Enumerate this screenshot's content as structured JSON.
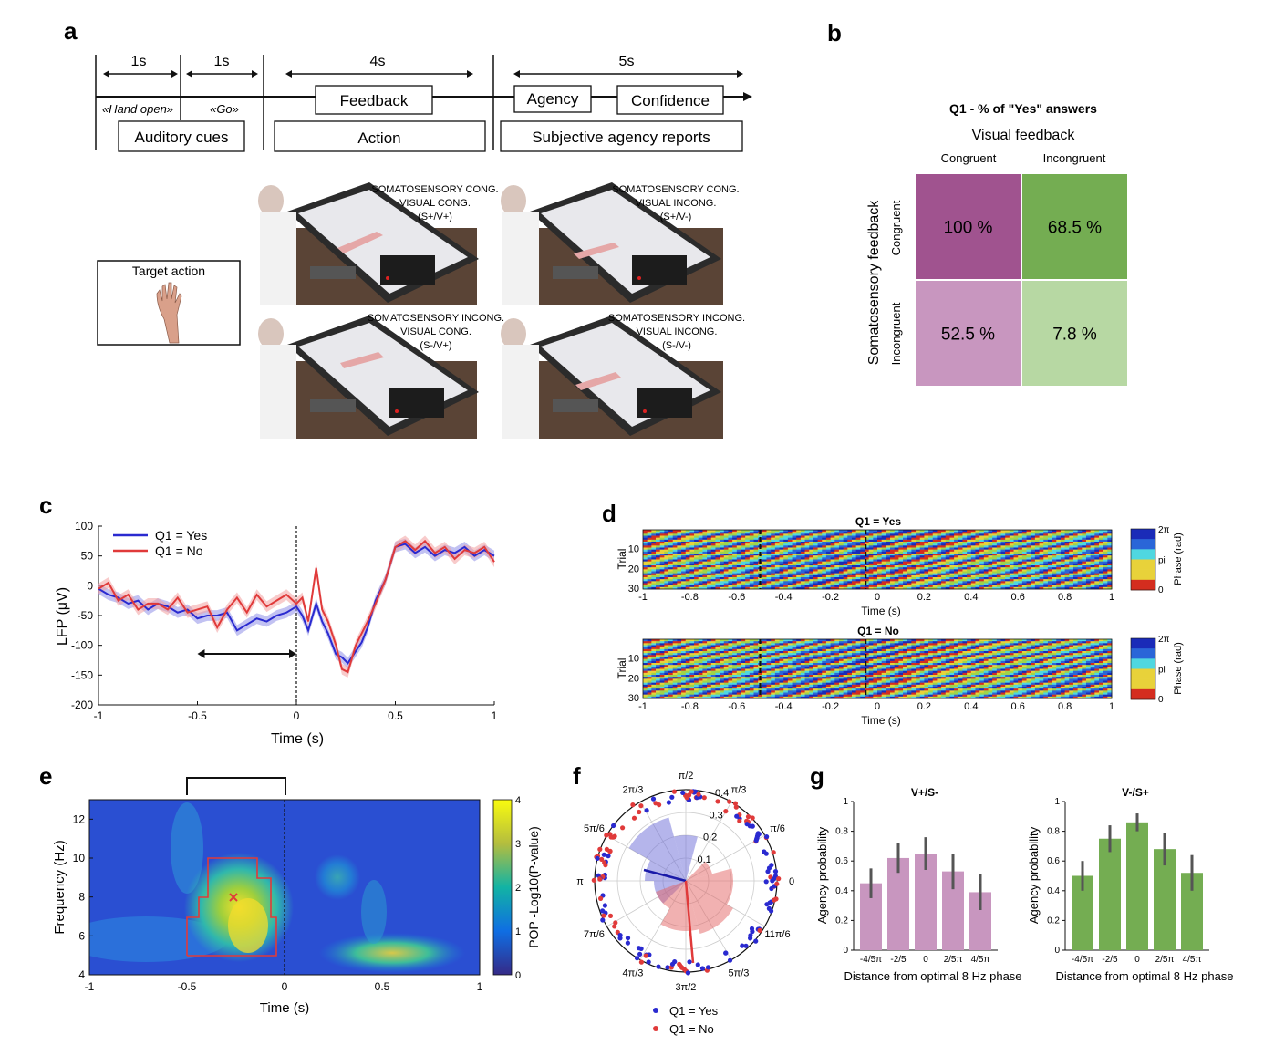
{
  "panels": {
    "a": "a",
    "b": "b",
    "c": "c",
    "d": "d",
    "e": "e",
    "f": "f",
    "g": "g"
  },
  "a": {
    "durations": [
      "1s",
      "1s",
      "4s",
      "5s"
    ],
    "cue_hand_open": "«Hand open»",
    "cue_go": "«Go»",
    "boxes": {
      "auditory": "Auditory cues",
      "feedback": "Feedback",
      "action": "Action",
      "agency": "Agency",
      "confidence": "Confidence",
      "reports": "Subjective agency reports"
    },
    "target_action": "Target action",
    "conditions": [
      [
        "SOMATOSENSORY CONG.",
        "VISUAL CONG.",
        "(S+/V+)"
      ],
      [
        "SOMATOSENSORY CONG.",
        "VISUAL INCONG.",
        "(S+/V-)"
      ],
      [
        "SOMATOSENSORY INCONG.",
        "VISUAL CONG.",
        "(S-/V+)"
      ],
      [
        "SOMATOSENSORY INCONG.",
        "VISUAL INCONG.",
        "(S-/V-)"
      ]
    ]
  },
  "chart_data": [
    {
      "panel": "b",
      "type": "heatmap",
      "title": "Q1 - % of \"Yes\" answers",
      "xlabel": "Visual feedback",
      "ylabel": "Somatosensory feedback",
      "columns": [
        "Congruent",
        "Incongruent"
      ],
      "rows": [
        "Congruent",
        "Incongruent"
      ],
      "values": [
        [
          100,
          68.5
        ],
        [
          52.5,
          7.8
        ]
      ],
      "value_labels": [
        [
          "100 %",
          "68.5 %"
        ],
        [
          "52.5 %",
          "7.8 %"
        ]
      ],
      "colors": [
        [
          "#a0538f",
          "#74ad52"
        ],
        [
          "#c896bf",
          "#b7d8a3"
        ]
      ]
    },
    {
      "panel": "c",
      "type": "line",
      "xlabel": "Time (s)",
      "ylabel": "LFP (μV)",
      "xlim": [
        -1,
        1
      ],
      "ylim": [
        -200,
        100
      ],
      "xticks": [
        -1,
        -0.5,
        0,
        0.5,
        1
      ],
      "xtick_labels": [
        "-1",
        "-0.5",
        "0",
        "0.5",
        "1"
      ],
      "yticks": [
        100,
        50,
        0,
        -50,
        -100,
        -150,
        -200
      ],
      "ytick_labels": [
        "100",
        "50",
        "0",
        "-50",
        "-100",
        "-150",
        "-200"
      ],
      "vline": 0,
      "arrow_x": [
        -0.5,
        0
      ],
      "series": [
        {
          "name": "Q1 = Yes",
          "color": "#2a2ad0",
          "band": "#8f8fe8",
          "x": [
            -1,
            -0.95,
            -0.9,
            -0.85,
            -0.8,
            -0.75,
            -0.7,
            -0.65,
            -0.6,
            -0.55,
            -0.5,
            -0.45,
            -0.4,
            -0.35,
            -0.3,
            -0.25,
            -0.2,
            -0.15,
            -0.1,
            -0.05,
            0,
            0.03,
            0.06,
            0.1,
            0.13,
            0.16,
            0.2,
            0.23,
            0.26,
            0.3,
            0.33,
            0.36,
            0.4,
            0.45,
            0.5,
            0.55,
            0.6,
            0.65,
            0.7,
            0.75,
            0.8,
            0.85,
            0.9,
            0.95,
            1
          ],
          "y": [
            -5,
            -15,
            -20,
            -30,
            -25,
            -40,
            -30,
            -35,
            -45,
            -40,
            -55,
            -50,
            -50,
            -45,
            -75,
            -65,
            -55,
            -60,
            -50,
            -45,
            -35,
            -50,
            -75,
            -30,
            -60,
            -80,
            -115,
            -120,
            -130,
            -110,
            -95,
            -70,
            -25,
            10,
            65,
            70,
            55,
            65,
            50,
            60,
            55,
            65,
            50,
            60,
            50
          ]
        },
        {
          "name": "Q1 = No",
          "color": "#e03a3a",
          "band": "#f3a0a0",
          "x": [
            -1,
            -0.95,
            -0.9,
            -0.85,
            -0.8,
            -0.75,
            -0.7,
            -0.65,
            -0.6,
            -0.55,
            -0.5,
            -0.45,
            -0.4,
            -0.35,
            -0.3,
            -0.25,
            -0.2,
            -0.15,
            -0.1,
            -0.05,
            0,
            0.03,
            0.06,
            0.1,
            0.13,
            0.16,
            0.2,
            0.23,
            0.26,
            0.3,
            0.33,
            0.36,
            0.4,
            0.45,
            0.5,
            0.55,
            0.6,
            0.65,
            0.7,
            0.75,
            0.8,
            0.85,
            0.9,
            0.95,
            1
          ],
          "y": [
            -5,
            5,
            -25,
            -15,
            -40,
            -30,
            -30,
            -40,
            -20,
            -45,
            -40,
            -35,
            -70,
            -40,
            -20,
            -45,
            -15,
            -35,
            -25,
            -15,
            -30,
            -20,
            -60,
            30,
            -40,
            -60,
            -100,
            -140,
            -145,
            -100,
            -80,
            -60,
            -30,
            10,
            65,
            75,
            60,
            75,
            55,
            65,
            45,
            60,
            55,
            65,
            40
          ]
        }
      ]
    },
    {
      "panel": "d",
      "type": "heatmap",
      "subplots": [
        {
          "title": "Q1 = Yes",
          "ylabel": "Trial",
          "xlabel": "Time (s)"
        },
        {
          "title": "Q1 = No",
          "ylabel": "Trial",
          "xlabel": "Time (s)"
        }
      ],
      "xlim": [
        -1,
        1
      ],
      "xtick_labels": [
        "-1",
        "-0.8",
        "-0.6",
        "-0.4",
        "-0.2",
        "0",
        "0.2",
        "0.4",
        "0.6",
        "0.8",
        "1"
      ],
      "ytick_labels": [
        "10",
        "20",
        "30"
      ],
      "trials": 30,
      "dashed_lines": [
        -0.5,
        -0.05
      ],
      "colorbar_label": "Phase (rad)",
      "colorbar_ticks": [
        "2π",
        "pi",
        "0"
      ]
    },
    {
      "panel": "e",
      "type": "heatmap",
      "xlabel": "Time (s)",
      "ylabel": "Frequency (Hz)",
      "xlim": [
        -1,
        1
      ],
      "ylim": [
        4,
        13
      ],
      "xtick_labels": [
        "-1",
        "-0.5",
        "0",
        "0.5",
        "1"
      ],
      "ytick_labels": [
        "4",
        "6",
        "8",
        "10",
        "12"
      ],
      "colorbar_label": "POP -Log10(P-value)",
      "colorbar_range": [
        0,
        4
      ],
      "colorbar_ticks": [
        "0",
        "1",
        "2",
        "3",
        "4"
      ],
      "peak": {
        "time": -0.26,
        "freq": 8
      },
      "bracket_x": [
        -0.5,
        0
      ]
    },
    {
      "panel": "f",
      "type": "scatter",
      "angle_labels": [
        "π/2",
        "π/3",
        "π/6",
        "0",
        "11π/6",
        "5π/3",
        "3π/2",
        "4π/3",
        "7π/6",
        "π",
        "5π/6",
        "2π/3"
      ],
      "radial_labels": [
        "0.1",
        "0.2",
        "0.3",
        "0.4"
      ],
      "series": [
        {
          "name": "Q1 = Yes",
          "color": "#2a2ad0"
        },
        {
          "name": "Q1 = No",
          "color": "#e03a3a"
        }
      ]
    },
    {
      "panel": "g",
      "type": "bar",
      "subplots": [
        {
          "title": "V+/S-",
          "color": "#c896bf",
          "categories": [
            "-4/5π",
            "-2/5",
            "0",
            "2/5π",
            "4/5π"
          ],
          "values": [
            0.45,
            0.62,
            0.65,
            0.53,
            0.39
          ],
          "errors": [
            0.1,
            0.1,
            0.11,
            0.12,
            0.12
          ]
        },
        {
          "title": "V-/S+",
          "color": "#74ad52",
          "categories": [
            "-4/5π",
            "-2/5",
            "0",
            "2/5π",
            "4/5π"
          ],
          "values": [
            0.5,
            0.75,
            0.86,
            0.68,
            0.52
          ],
          "errors": [
            0.1,
            0.09,
            0.06,
            0.11,
            0.12
          ]
        }
      ],
      "xlabel": "Distance from optimal 8 Hz phase",
      "ylabel": "Agency probability",
      "ylim": [
        0,
        1
      ],
      "ytick_labels": [
        "0",
        "0.2",
        "0.4",
        "0.6",
        "0.8",
        "1"
      ]
    }
  ]
}
